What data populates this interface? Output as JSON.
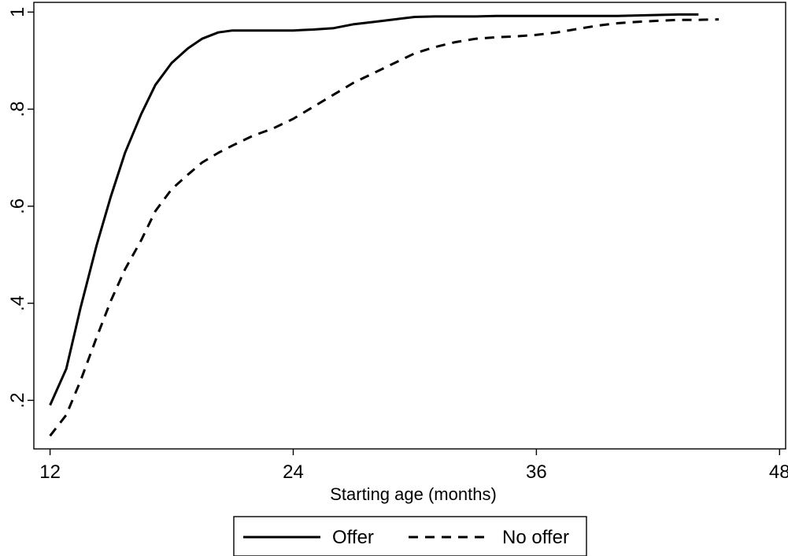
{
  "chart_data": {
    "type": "line",
    "title": "",
    "xlabel": "Starting age (months)",
    "ylabel": "",
    "xlim": [
      11.2,
      48.3
    ],
    "ylim": [
      0.1,
      1.02
    ],
    "x_ticks": [
      12,
      24,
      36,
      48
    ],
    "x_tick_labels": [
      "12",
      "24",
      "36",
      "48"
    ],
    "y_ticks": [
      0.2,
      0.4,
      0.6,
      0.8,
      1.0
    ],
    "y_tick_labels": [
      ".2",
      ".4",
      ".6",
      ".8",
      "1"
    ],
    "grid": false,
    "legend_position": "bottom",
    "series": [
      {
        "name": "Offer",
        "style": "solid",
        "color": "#000000",
        "x": [
          12,
          12.8,
          13.5,
          14.3,
          15,
          15.7,
          16.5,
          17.2,
          18,
          18.8,
          19.5,
          20.3,
          21,
          22,
          23,
          24,
          25,
          26,
          27,
          28,
          29,
          30,
          31,
          32,
          33,
          34,
          35,
          36,
          37,
          38,
          39,
          40,
          41,
          42,
          43,
          44
        ],
        "y": [
          0.19,
          0.265,
          0.39,
          0.52,
          0.62,
          0.71,
          0.79,
          0.85,
          0.895,
          0.925,
          0.945,
          0.958,
          0.962,
          0.962,
          0.962,
          0.962,
          0.964,
          0.967,
          0.975,
          0.98,
          0.985,
          0.99,
          0.991,
          0.991,
          0.991,
          0.992,
          0.992,
          0.992,
          0.992,
          0.992,
          0.992,
          0.992,
          0.993,
          0.994,
          0.995,
          0.995
        ]
      },
      {
        "name": "No offer",
        "style": "dashed",
        "color": "#000000",
        "x": [
          12,
          12.8,
          13.5,
          14.3,
          15,
          15.7,
          16.5,
          17.2,
          18,
          18.8,
          19.5,
          20.3,
          21,
          22,
          23,
          24,
          25,
          26,
          27,
          28,
          29,
          30,
          31,
          32,
          33,
          34,
          35,
          36,
          37,
          38,
          39,
          40,
          41,
          42,
          43,
          44,
          45
        ],
        "y": [
          0.127,
          0.17,
          0.24,
          0.33,
          0.405,
          0.47,
          0.53,
          0.59,
          0.635,
          0.665,
          0.69,
          0.71,
          0.725,
          0.745,
          0.76,
          0.78,
          0.805,
          0.83,
          0.855,
          0.875,
          0.895,
          0.915,
          0.928,
          0.938,
          0.945,
          0.948,
          0.95,
          0.953,
          0.958,
          0.965,
          0.972,
          0.977,
          0.98,
          0.982,
          0.984,
          0.984,
          0.985
        ]
      }
    ]
  }
}
